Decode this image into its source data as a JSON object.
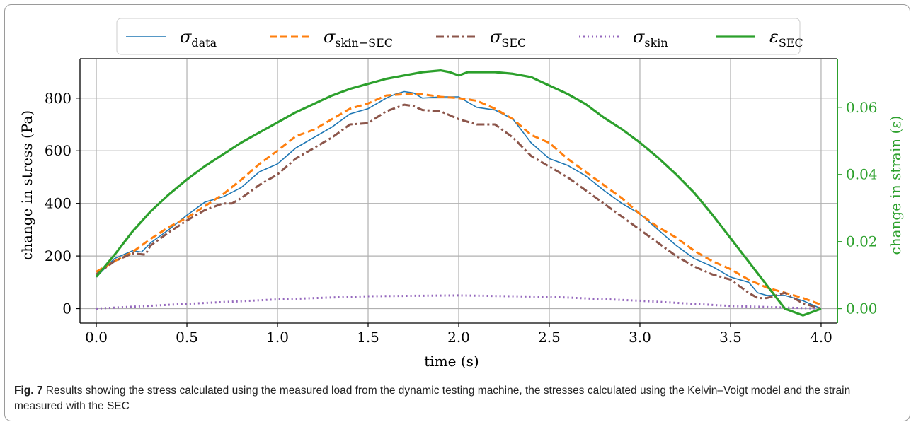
{
  "figure": {
    "caption_label": "Fig. 7",
    "caption_text": "Results showing the stress calculated using the measured load from the dynamic testing machine, the stresses calculated using the Kelvin–Voigt model and the strain measured with the SEC"
  },
  "chart_data": {
    "type": "line",
    "title": "",
    "xlabel": "time (s)",
    "ylabel": "change in stress (Pa)",
    "y2label": "change in strain (ε)",
    "xlim": [
      -0.09,
      4.09
    ],
    "ylim": [
      -55,
      950
    ],
    "y2lim": [
      -0.0043,
      0.0745
    ],
    "x_ticks": [
      0.0,
      0.5,
      1.0,
      1.5,
      2.0,
      2.5,
      3.0,
      3.5,
      4.0
    ],
    "x_tick_labels": [
      "0.0",
      "0.5",
      "1.0",
      "1.5",
      "2.0",
      "2.5",
      "3.0",
      "3.5",
      "4.0"
    ],
    "y_ticks": [
      0,
      200,
      400,
      600,
      800
    ],
    "y_tick_labels": [
      "0",
      "200",
      "400",
      "600",
      "800"
    ],
    "y2_ticks": [
      0.0,
      0.02,
      0.04,
      0.06
    ],
    "y2_tick_labels": [
      "0.00",
      "0.02",
      "0.04",
      "0.06"
    ],
    "grid": true,
    "legend_position": "top",
    "series": [
      {
        "name": "σ_data",
        "axis": "left",
        "color": "#1f77b4",
        "style": "solid",
        "x": [
          0.0,
          0.1,
          0.2,
          0.25,
          0.3,
          0.4,
          0.5,
          0.6,
          0.7,
          0.8,
          0.9,
          1.0,
          1.1,
          1.2,
          1.3,
          1.4,
          1.5,
          1.6,
          1.65,
          1.7,
          1.75,
          1.8,
          1.9,
          2.0,
          2.05,
          2.1,
          2.2,
          2.3,
          2.4,
          2.5,
          2.6,
          2.7,
          2.8,
          2.9,
          3.0,
          3.1,
          3.2,
          3.3,
          3.4,
          3.5,
          3.6,
          3.65,
          3.7,
          3.8,
          3.9,
          4.0
        ],
        "y": [
          120,
          190,
          220,
          215,
          250,
          300,
          355,
          405,
          425,
          460,
          520,
          550,
          610,
          650,
          690,
          740,
          760,
          800,
          815,
          825,
          820,
          800,
          805,
          805,
          785,
          765,
          755,
          720,
          630,
          570,
          545,
          505,
          450,
          400,
          360,
          300,
          240,
          190,
          160,
          120,
          100,
          60,
          50,
          50,
          30,
          0
        ]
      },
      {
        "name": "σ_skin−SEC",
        "axis": "left",
        "color": "#ff7f0e",
        "style": "dashed",
        "x": [
          0.0,
          0.1,
          0.2,
          0.3,
          0.4,
          0.5,
          0.6,
          0.7,
          0.8,
          0.9,
          1.0,
          1.1,
          1.2,
          1.3,
          1.4,
          1.5,
          1.6,
          1.7,
          1.8,
          1.9,
          2.0,
          2.1,
          2.2,
          2.3,
          2.4,
          2.5,
          2.6,
          2.7,
          2.8,
          2.9,
          3.0,
          3.1,
          3.2,
          3.3,
          3.4,
          3.5,
          3.6,
          3.7,
          3.8,
          3.9,
          4.0
        ],
        "y": [
          140,
          180,
          215,
          265,
          310,
          345,
          390,
          435,
          490,
          550,
          600,
          655,
          680,
          720,
          760,
          780,
          810,
          815,
          815,
          805,
          800,
          790,
          760,
          720,
          660,
          630,
          570,
          520,
          470,
          420,
          360,
          310,
          270,
          220,
          180,
          150,
          110,
          80,
          60,
          40,
          15
        ]
      },
      {
        "name": "σ_SEC",
        "axis": "left",
        "color": "#8c564b",
        "style": "dashdot",
        "x": [
          0.0,
          0.1,
          0.2,
          0.27,
          0.3,
          0.4,
          0.5,
          0.6,
          0.7,
          0.75,
          0.8,
          0.9,
          1.0,
          1.1,
          1.2,
          1.3,
          1.4,
          1.5,
          1.6,
          1.7,
          1.75,
          1.8,
          1.9,
          2.0,
          2.1,
          2.2,
          2.3,
          2.4,
          2.5,
          2.6,
          2.7,
          2.8,
          2.9,
          3.0,
          3.1,
          3.2,
          3.3,
          3.4,
          3.5,
          3.6,
          3.65,
          3.7,
          3.8,
          3.9,
          4.0
        ],
        "y": [
          130,
          180,
          210,
          205,
          240,
          290,
          335,
          375,
          400,
          400,
          420,
          470,
          510,
          570,
          610,
          650,
          700,
          705,
          750,
          775,
          770,
          755,
          750,
          720,
          700,
          700,
          650,
          580,
          540,
          500,
          450,
          400,
          350,
          300,
          250,
          200,
          160,
          130,
          110,
          60,
          40,
          40,
          60,
          20,
          0
        ]
      },
      {
        "name": "σ_skin",
        "axis": "left",
        "color": "#9467bd",
        "style": "dotted",
        "x": [
          0.0,
          0.5,
          1.0,
          1.5,
          2.0,
          2.5,
          3.0,
          3.5,
          4.0
        ],
        "y": [
          0,
          18,
          35,
          47,
          50,
          45,
          30,
          10,
          0
        ]
      },
      {
        "name": "ε_SEC",
        "axis": "right",
        "color": "#2ca02c",
        "style": "solid",
        "x": [
          0.0,
          0.1,
          0.2,
          0.3,
          0.4,
          0.5,
          0.6,
          0.7,
          0.8,
          0.9,
          1.0,
          1.1,
          1.2,
          1.3,
          1.4,
          1.5,
          1.6,
          1.7,
          1.8,
          1.9,
          1.95,
          2.0,
          2.05,
          2.1,
          2.2,
          2.3,
          2.4,
          2.5,
          2.6,
          2.7,
          2.8,
          2.9,
          3.0,
          3.1,
          3.2,
          3.3,
          3.4,
          3.5,
          3.6,
          3.7,
          3.8,
          3.9,
          4.0
        ],
        "y": [
          0.0095,
          0.016,
          0.023,
          0.029,
          0.034,
          0.0385,
          0.0425,
          0.046,
          0.0495,
          0.0525,
          0.0555,
          0.0585,
          0.061,
          0.0635,
          0.0655,
          0.067,
          0.0685,
          0.0695,
          0.0705,
          0.071,
          0.0705,
          0.0695,
          0.0705,
          0.0705,
          0.0705,
          0.07,
          0.069,
          0.0665,
          0.064,
          0.061,
          0.057,
          0.0535,
          0.0495,
          0.045,
          0.04,
          0.0345,
          0.028,
          0.021,
          0.014,
          0.007,
          0.0,
          -0.002,
          0.0
        ]
      }
    ]
  }
}
